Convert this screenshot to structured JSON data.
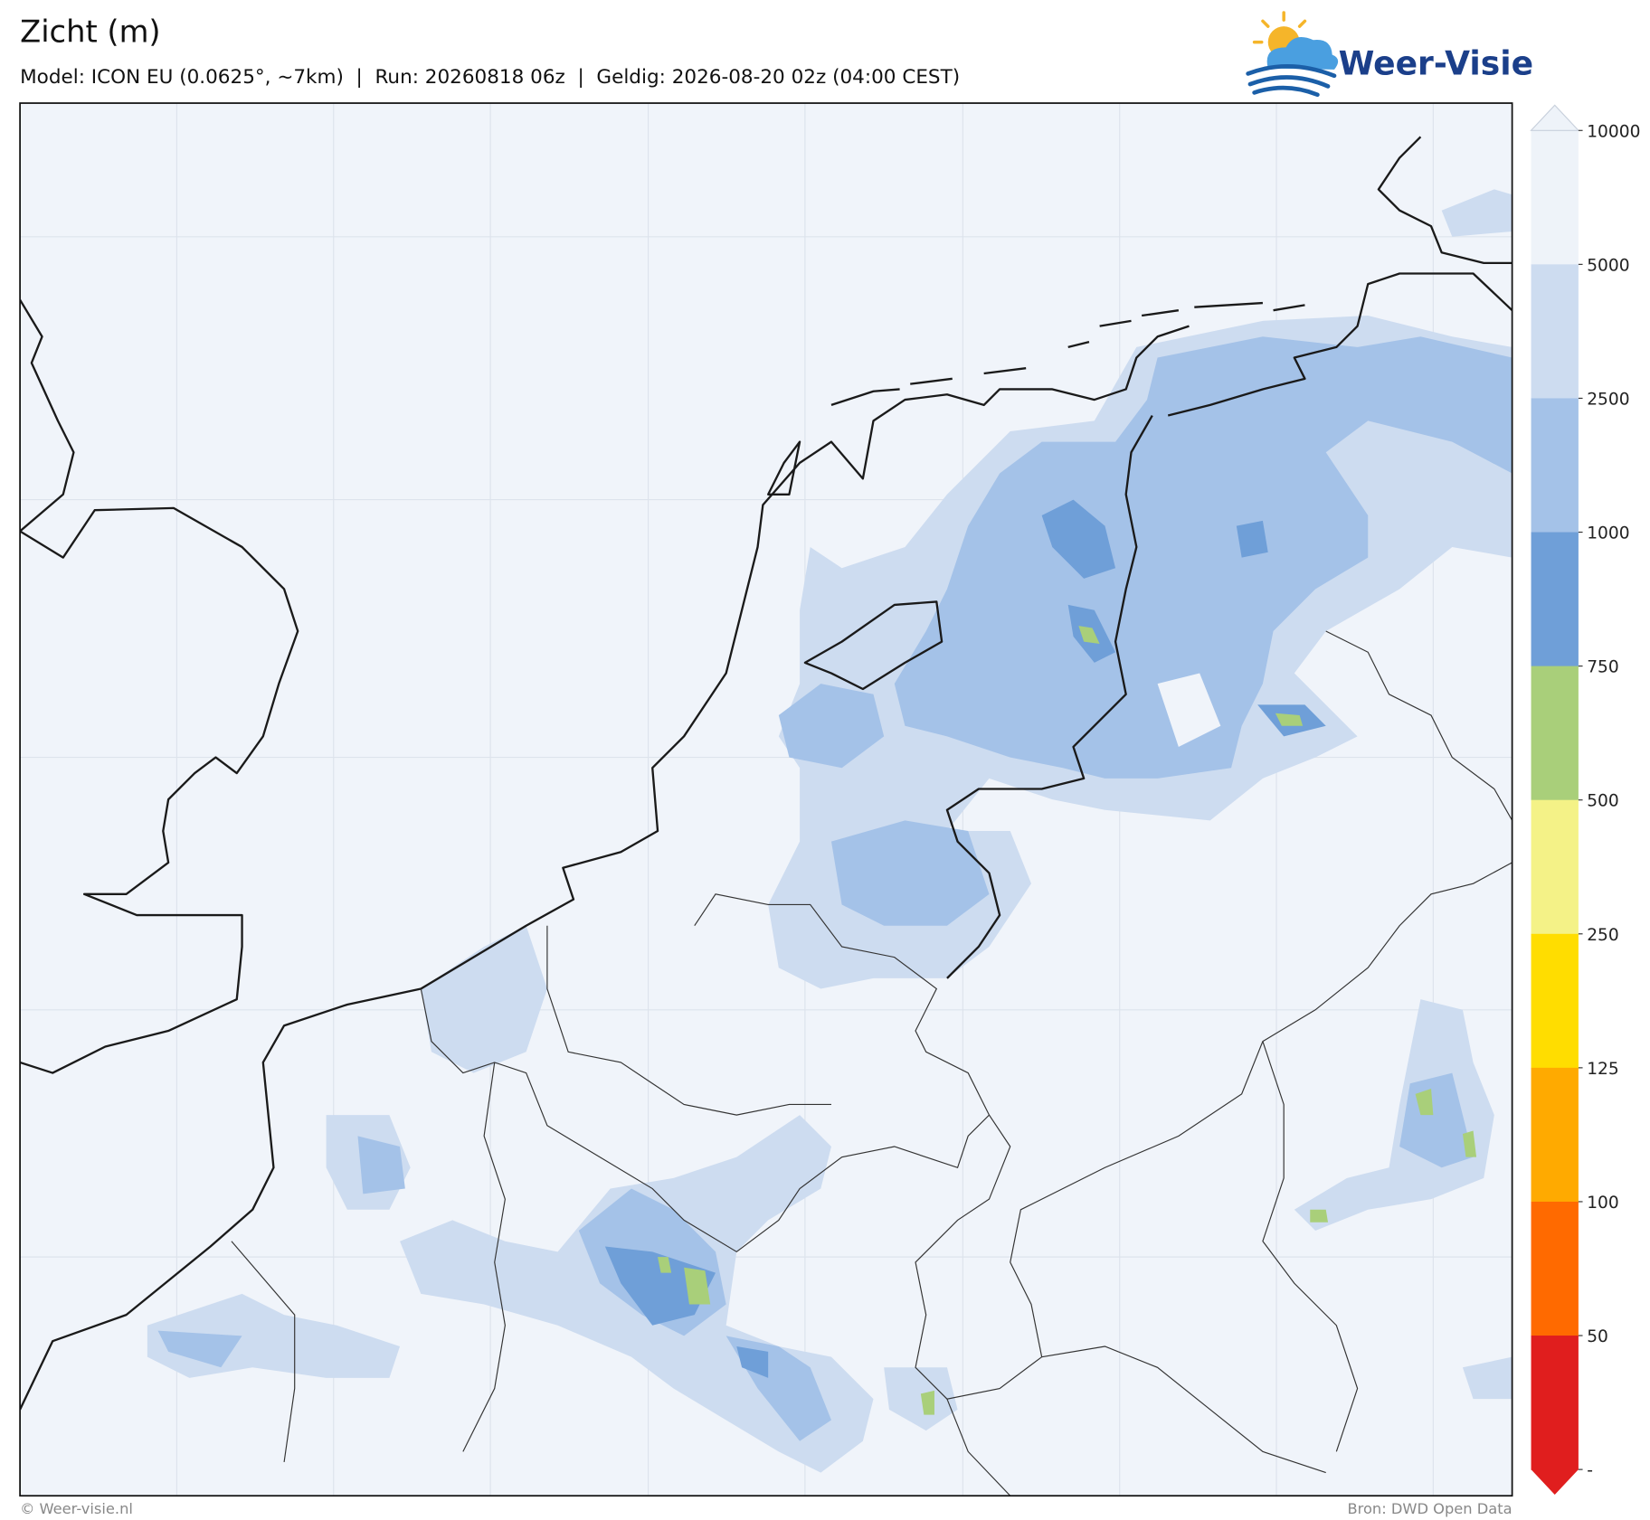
{
  "header": {
    "title": "Zicht (m)",
    "subtitle": "Model: ICON EU (0.0625°, ~7km)  |  Run: 20260818 06z  |  Geldig: 2026-08-20 02z (04:00 CEST)",
    "logo": "Weer-Visie"
  },
  "colorbar": {
    "labels": [
      "10000",
      "5000",
      "2500",
      "1000",
      "750",
      "500",
      "250",
      "125",
      "100",
      "50",
      "-"
    ],
    "colors": [
      "#eef3f9",
      "#cddcf0",
      "#a4c2e8",
      "#6f9fd8",
      "#a9cf7a",
      "#f4f287",
      "#ffdd00",
      "#ffaa00",
      "#ff6a00",
      "#e01e1e"
    ]
  },
  "footer": {
    "left": "© Weer-visie.nl",
    "right": "Bron: DWD Open Data"
  }
}
